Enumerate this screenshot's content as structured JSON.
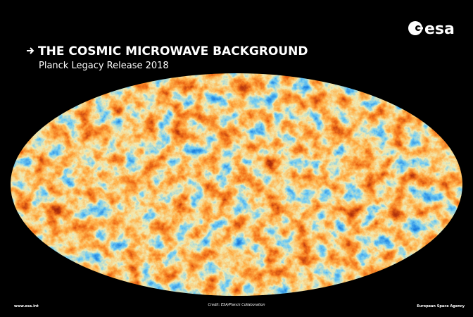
{
  "logo": "esa",
  "title": "THE COSMIC MICROWAVE BACKGROUND",
  "subtitle": "Planck Legacy Release 2018",
  "footer": {
    "left": "www.esa.int",
    "center": "Credit: ESA/Planck Collaboration",
    "right": "European Space Agency"
  }
}
